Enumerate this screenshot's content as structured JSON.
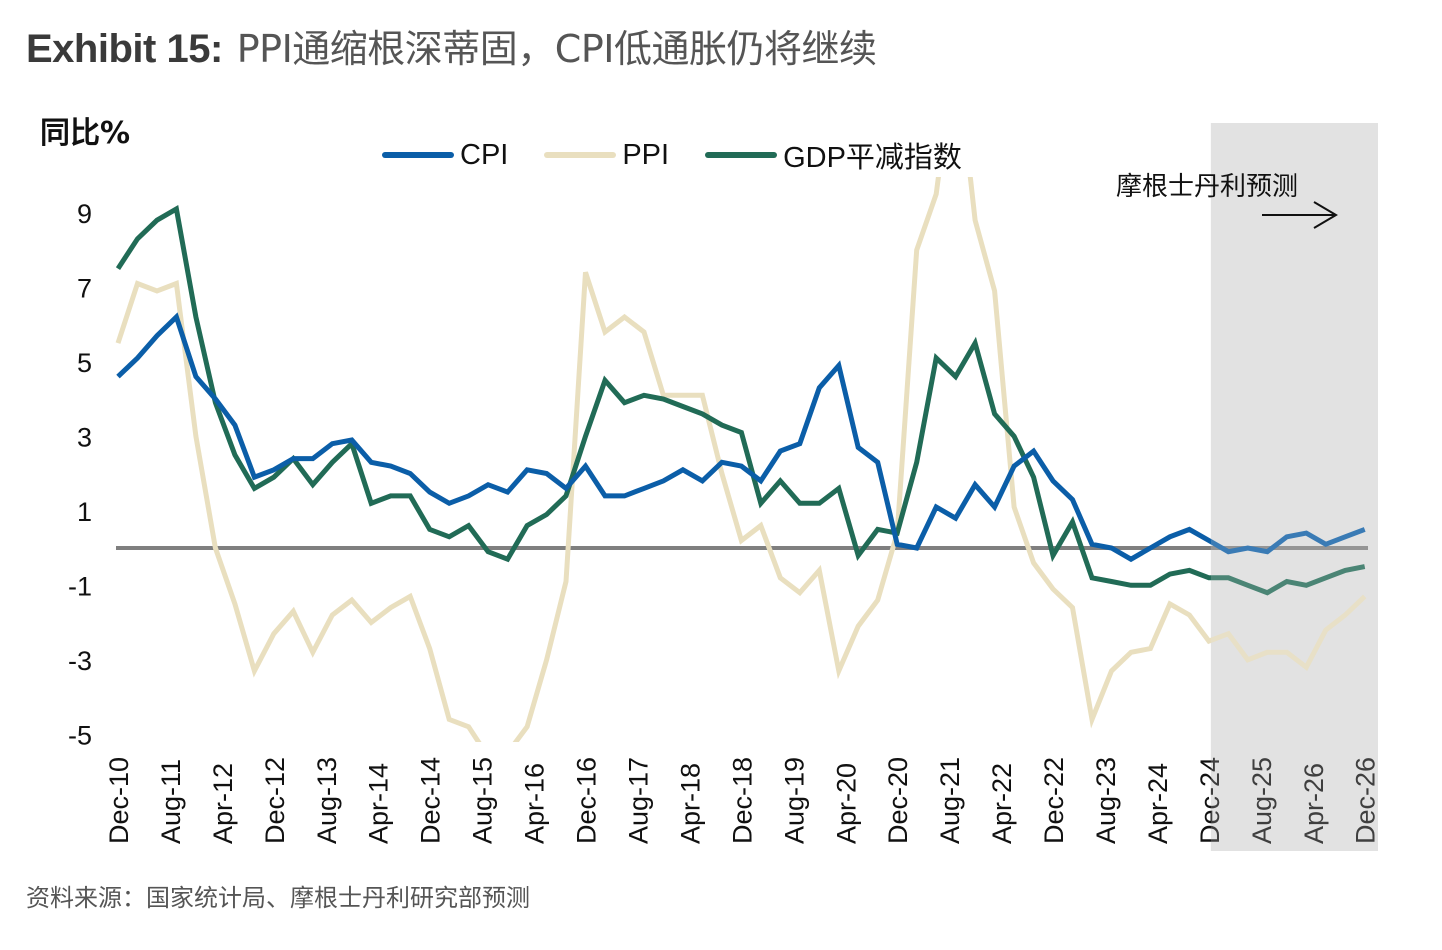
{
  "title": {
    "lead": "Exhibit 15:",
    "text": "PPI通缩根深蒂固，CPI低通胀仍将继续"
  },
  "source": "资料来源：国家统计局、摩根士丹利研究部预测",
  "chart_data": {
    "type": "line",
    "title": "PPI通缩根深蒂固，CPI低通胀仍将继续",
    "ylabel": "同比%",
    "xlabel": "",
    "ylim": [
      -5.2,
      10
    ],
    "yticks": [
      9,
      7,
      5,
      3,
      1,
      -1,
      -3,
      -5
    ],
    "xtick_labels": [
      "Dec-10",
      "Aug-11",
      "Apr-12",
      "Dec-12",
      "Aug-13",
      "Apr-14",
      "Dec-14",
      "Aug-15",
      "Apr-16",
      "Dec-16",
      "Aug-17",
      "Apr-18",
      "Dec-18",
      "Aug-19",
      "Apr-20",
      "Dec-20",
      "Aug-21",
      "Apr-22",
      "Dec-22",
      "Aug-23",
      "Apr-24",
      "Dec-24",
      "Aug-25",
      "Apr-26",
      "Dec-26"
    ],
    "x_start": "Dec-10",
    "x_frequency": "quarterly",
    "zero_line": true,
    "grid": false,
    "legend_position": "top-center",
    "forecast": {
      "label": "摩根士丹利预测",
      "start": "Dec-24",
      "end": "Dec-26",
      "shade_color": "#e2e2e2"
    },
    "series": [
      {
        "name": "CPI",
        "color": "#0b5ea8",
        "values": [
          4.6,
          5.1,
          5.7,
          6.2,
          4.6,
          4.0,
          3.3,
          1.9,
          2.1,
          2.4,
          2.4,
          2.8,
          2.9,
          2.3,
          2.2,
          2.0,
          1.5,
          1.2,
          1.4,
          1.7,
          1.5,
          2.1,
          2.0,
          1.6,
          2.2,
          1.4,
          1.4,
          1.6,
          1.8,
          2.1,
          1.8,
          2.3,
          2.2,
          1.8,
          2.6,
          2.8,
          4.3,
          4.9,
          2.7,
          2.3,
          0.1,
          0.0,
          1.1,
          0.8,
          1.7,
          1.1,
          2.2,
          2.6,
          1.8,
          1.3,
          0.1,
          0.0,
          -0.3,
          0.0,
          0.3,
          0.5,
          0.2,
          -0.1,
          0.0,
          -0.1,
          0.3,
          0.4,
          0.1,
          0.3,
          0.5
        ]
      },
      {
        "name": "PPI",
        "color": "#e9dfbf",
        "values": [
          5.5,
          7.1,
          6.9,
          7.1,
          3.0,
          0.0,
          -1.5,
          -3.3,
          -2.3,
          -1.7,
          -2.8,
          -1.8,
          -1.4,
          -2.0,
          -1.6,
          -1.3,
          -2.7,
          -4.6,
          -4.8,
          -5.6,
          -5.5,
          -4.8,
          -3.0,
          -0.9,
          7.4,
          5.8,
          6.2,
          5.8,
          4.1,
          4.1,
          4.1,
          2.0,
          0.2,
          0.6,
          -0.8,
          -1.2,
          -0.6,
          -3.3,
          -2.1,
          -1.4,
          0.4,
          8.0,
          9.5,
          13.5,
          8.8,
          6.9,
          1.1,
          -0.4,
          -1.1,
          -1.6,
          -4.6,
          -3.3,
          -2.8,
          -2.7,
          -1.5,
          -1.8,
          -2.5,
          -2.3,
          -3.0,
          -2.8,
          -2.8,
          -3.2,
          -2.2,
          -1.8,
          -1.3
        ]
      },
      {
        "name": "GDP平减指数",
        "color": "#216b56",
        "values": [
          7.5,
          8.3,
          8.8,
          9.1,
          6.2,
          3.9,
          2.5,
          1.6,
          1.9,
          2.4,
          1.7,
          2.3,
          2.8,
          1.2,
          1.4,
          1.4,
          0.5,
          0.3,
          0.6,
          -0.1,
          -0.3,
          0.6,
          0.9,
          1.4,
          3.0,
          4.5,
          3.9,
          4.1,
          4.0,
          3.8,
          3.6,
          3.3,
          3.1,
          1.2,
          1.8,
          1.2,
          1.2,
          1.6,
          -0.2,
          0.5,
          0.4,
          2.3,
          5.1,
          4.6,
          5.5,
          3.6,
          3.0,
          1.9,
          -0.2,
          0.7,
          -0.8,
          -0.9,
          -1.0,
          -1.0,
          -0.7,
          -0.6,
          -0.8,
          -0.8,
          -1.0,
          -1.2,
          -0.9,
          -1.0,
          -0.8,
          -0.6,
          -0.5
        ]
      }
    ]
  }
}
